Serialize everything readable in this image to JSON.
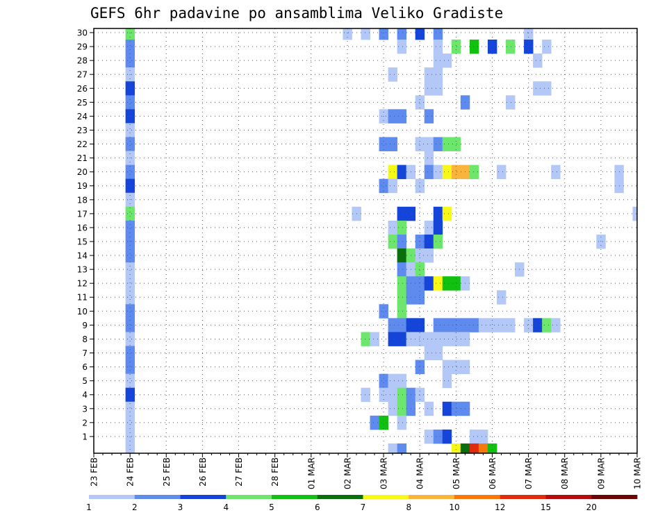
{
  "chart_data": {
    "type": "heatmap",
    "title": "GEFS 6hr padavine po ansamblima Veliko Gradiste",
    "xlabel": "",
    "ylabel": "",
    "x_ticks": [
      "23 FEB",
      "24 FEB",
      "25 FEB",
      "26 FEB",
      "27 FEB",
      "28 FEB",
      "01 MAR",
      "02 MAR",
      "03 MAR",
      "04 MAR",
      "05 MAR",
      "06 MAR",
      "07 MAR",
      "08 MAR",
      "09 MAR",
      "10 MAR"
    ],
    "y_ticks": [
      "1",
      "2",
      "3",
      "4",
      "5",
      "6",
      "7",
      "8",
      "9",
      "10",
      "11",
      "12",
      "13",
      "14",
      "15",
      "16",
      "17",
      "18",
      "19",
      "20",
      "21",
      "22",
      "23",
      "24",
      "25",
      "26",
      "27",
      "28",
      "29",
      "30"
    ],
    "ensemble_members": [
      0,
      30
    ],
    "steps_per_day": 4,
    "grid": true,
    "legend": {
      "placement": "bottom",
      "levels": [
        "1",
        "2",
        "3",
        "4",
        "5",
        "6",
        "7",
        "8",
        "10",
        "12",
        "15",
        "20"
      ],
      "colors": [
        "#b4c8f8",
        "#5f8bef",
        "#1444d8",
        "#6ee66e",
        "#11c011",
        "#0a6e0a",
        "#f8f818",
        "#f8b43c",
        "#f8780c",
        "#e02c0c",
        "#b40c0c",
        "#6e0404"
      ]
    },
    "cells": [
      [
        30,
        1,
        4
      ],
      [
        30,
        7,
        1
      ],
      [
        30,
        7.5,
        1
      ],
      [
        30,
        8,
        2
      ],
      [
        30,
        8.5,
        2
      ],
      [
        30,
        9,
        3
      ],
      [
        30,
        9.5,
        2
      ],
      [
        30,
        12,
        1
      ],
      [
        29,
        1,
        2
      ],
      [
        29,
        8.5,
        1
      ],
      [
        29,
        9.5,
        1
      ],
      [
        29,
        10,
        4
      ],
      [
        29,
        10.5,
        5
      ],
      [
        29,
        11,
        3
      ],
      [
        29,
        11.5,
        4
      ],
      [
        29,
        12,
        3
      ],
      [
        29,
        12.5,
        1
      ],
      [
        29,
        17,
        1
      ],
      [
        29,
        21,
        1
      ],
      [
        29,
        22,
        2
      ],
      [
        29,
        22.5,
        3
      ],
      [
        28,
        1,
        2
      ],
      [
        28,
        9.5,
        1
      ],
      [
        28,
        9.75,
        1
      ],
      [
        28,
        12.25,
        1
      ],
      [
        27,
        1,
        1
      ],
      [
        27,
        8.25,
        1
      ],
      [
        27,
        9.25,
        1
      ],
      [
        27,
        9.5,
        1
      ],
      [
        27,
        22.25,
        1
      ],
      [
        26,
        1,
        3
      ],
      [
        26,
        9.25,
        1
      ],
      [
        26,
        9.5,
        1
      ],
      [
        26,
        12.25,
        1
      ],
      [
        26,
        12.5,
        1
      ],
      [
        26,
        22.25,
        2
      ],
      [
        26,
        23,
        1
      ],
      [
        25,
        1,
        2
      ],
      [
        25,
        9,
        1
      ],
      [
        25,
        10.25,
        2
      ],
      [
        25,
        11.5,
        1
      ],
      [
        25,
        20.5,
        1
      ],
      [
        25,
        20.75,
        1
      ],
      [
        24,
        1,
        3
      ],
      [
        24,
        8,
        1
      ],
      [
        24,
        8.25,
        2
      ],
      [
        24,
        8.5,
        2
      ],
      [
        24,
        9.25,
        2
      ],
      [
        23,
        1,
        1
      ],
      [
        22,
        1,
        2
      ],
      [
        22,
        8,
        2
      ],
      [
        22,
        8.25,
        2
      ],
      [
        22,
        9,
        1
      ],
      [
        22,
        9.25,
        1
      ],
      [
        22,
        9.5,
        2
      ],
      [
        22,
        9.75,
        4
      ],
      [
        22,
        10,
        4
      ],
      [
        22,
        17.75,
        9
      ],
      [
        22,
        18,
        1
      ],
      [
        22,
        18.75,
        1
      ],
      [
        22,
        19,
        1
      ],
      [
        22,
        19.5,
        1
      ],
      [
        21,
        1,
        1
      ],
      [
        21,
        9.25,
        1
      ],
      [
        21,
        17.25,
        1
      ],
      [
        20,
        1,
        2
      ],
      [
        20,
        8.25,
        7
      ],
      [
        20,
        8.5,
        3
      ],
      [
        20,
        8.75,
        1
      ],
      [
        20,
        9.25,
        2
      ],
      [
        20,
        9.5,
        1
      ],
      [
        20,
        9.75,
        7
      ],
      [
        20,
        10,
        8
      ],
      [
        20,
        10.25,
        8
      ],
      [
        20,
        10.5,
        4
      ],
      [
        20,
        11.25,
        1
      ],
      [
        20,
        12.75,
        1
      ],
      [
        20,
        14.5,
        1
      ],
      [
        20,
        18,
        1
      ],
      [
        19,
        1,
        3
      ],
      [
        19,
        8,
        2
      ],
      [
        19,
        8.25,
        1
      ],
      [
        19,
        9,
        1
      ],
      [
        19,
        14.5,
        1
      ],
      [
        19,
        17,
        1
      ],
      [
        19,
        18.25,
        2
      ],
      [
        19,
        19.5,
        1
      ],
      [
        19,
        19.75,
        1
      ],
      [
        19,
        20.25,
        1
      ],
      [
        19,
        20.5,
        1
      ],
      [
        18,
        1,
        1
      ],
      [
        17,
        1,
        4
      ],
      [
        17,
        7.25,
        1
      ],
      [
        17,
        8.5,
        3
      ],
      [
        17,
        8.75,
        3
      ],
      [
        17,
        9.5,
        3
      ],
      [
        17,
        9.75,
        7
      ],
      [
        17,
        15,
        1
      ],
      [
        16,
        1,
        2
      ],
      [
        16,
        8.25,
        1
      ],
      [
        16,
        8.5,
        4
      ],
      [
        16,
        9.25,
        1
      ],
      [
        16,
        9.5,
        3
      ],
      [
        15,
        1,
        2
      ],
      [
        15,
        8.25,
        4
      ],
      [
        15,
        8.5,
        2
      ],
      [
        15,
        9,
        2
      ],
      [
        15,
        9.25,
        3
      ],
      [
        15,
        9.5,
        4
      ],
      [
        15,
        14,
        1
      ],
      [
        14,
        1,
        2
      ],
      [
        14,
        8.5,
        6
      ],
      [
        14,
        8.75,
        4
      ],
      [
        14,
        9,
        1
      ],
      [
        14,
        9.25,
        1
      ],
      [
        14,
        20,
        3
      ],
      [
        13,
        1,
        1
      ],
      [
        13,
        8.5,
        2
      ],
      [
        13,
        8.75,
        1
      ],
      [
        13,
        9,
        4
      ],
      [
        13,
        11.75,
        1
      ],
      [
        12,
        1,
        1
      ],
      [
        12,
        8.5,
        4
      ],
      [
        12,
        8.75,
        2
      ],
      [
        12,
        9,
        2
      ],
      [
        12,
        9.25,
        3
      ],
      [
        12,
        9.5,
        7
      ],
      [
        12,
        9.75,
        5
      ],
      [
        12,
        10,
        5
      ],
      [
        12,
        10.25,
        1
      ],
      [
        12,
        16,
        1
      ],
      [
        11,
        1,
        1
      ],
      [
        11,
        8.5,
        4
      ],
      [
        11,
        8.75,
        2
      ],
      [
        11,
        9,
        2
      ],
      [
        11,
        11.25,
        1
      ],
      [
        10,
        1,
        2
      ],
      [
        10,
        8,
        2
      ],
      [
        10,
        8.5,
        4
      ],
      [
        9,
        1,
        2
      ],
      [
        9,
        8.25,
        2
      ],
      [
        9,
        8.5,
        2
      ],
      [
        9,
        8.75,
        3
      ],
      [
        9,
        9,
        3
      ],
      [
        9,
        9.5,
        2
      ],
      [
        9,
        9.75,
        2
      ],
      [
        9,
        10,
        2
      ],
      [
        9,
        10.25,
        2
      ],
      [
        9,
        10.5,
        2
      ],
      [
        9,
        10.75,
        1
      ],
      [
        9,
        11,
        1
      ],
      [
        9,
        11.25,
        1
      ],
      [
        9,
        11.5,
        1
      ],
      [
        9,
        12,
        1
      ],
      [
        9,
        12.25,
        3
      ],
      [
        9,
        12.5,
        4
      ],
      [
        9,
        12.75,
        1
      ],
      [
        8,
        1,
        1
      ],
      [
        8,
        7.5,
        4
      ],
      [
        8,
        7.75,
        1
      ],
      [
        8,
        8.25,
        3
      ],
      [
        8,
        8.5,
        3
      ],
      [
        8,
        8.75,
        1
      ],
      [
        8,
        9,
        1
      ],
      [
        8,
        9.25,
        1
      ],
      [
        8,
        9.5,
        1
      ],
      [
        8,
        9.75,
        1
      ],
      [
        8,
        10,
        1
      ],
      [
        8,
        10.25,
        1
      ],
      [
        8,
        17.75,
        3
      ],
      [
        8,
        18,
        1
      ],
      [
        7,
        1,
        2
      ],
      [
        7,
        9.25,
        1
      ],
      [
        7,
        9.5,
        1
      ],
      [
        7,
        16.5,
        2
      ],
      [
        7,
        16.75,
        1
      ],
      [
        6,
        1,
        2
      ],
      [
        6,
        9,
        2
      ],
      [
        6,
        9.75,
        1
      ],
      [
        6,
        10,
        1
      ],
      [
        6,
        10.25,
        1
      ],
      [
        6,
        17,
        2
      ],
      [
        6,
        17.25,
        2
      ],
      [
        6,
        21.25,
        1
      ],
      [
        6,
        22.25,
        2
      ],
      [
        5,
        1,
        1
      ],
      [
        5,
        8,
        2
      ],
      [
        5,
        8.25,
        1
      ],
      [
        5,
        8.5,
        1
      ],
      [
        5,
        9.75,
        1
      ],
      [
        4,
        1,
        3
      ],
      [
        4,
        7.5,
        1
      ],
      [
        4,
        8,
        1
      ],
      [
        4,
        8.25,
        1
      ],
      [
        4,
        8.5,
        4
      ],
      [
        4,
        8.75,
        2
      ],
      [
        4,
        9,
        1
      ],
      [
        3,
        1,
        1
      ],
      [
        3,
        8.25,
        1
      ],
      [
        3,
        8.5,
        4
      ],
      [
        3,
        8.75,
        2
      ],
      [
        3,
        9.25,
        1
      ],
      [
        3,
        9.75,
        3
      ],
      [
        3,
        10,
        2
      ],
      [
        3,
        10.25,
        2
      ],
      [
        3,
        20.5,
        1
      ],
      [
        3,
        20.75,
        1
      ],
      [
        2,
        1,
        1
      ],
      [
        2,
        7.75,
        2
      ],
      [
        2,
        8,
        5
      ],
      [
        2,
        8.5,
        1
      ],
      [
        2,
        20.25,
        5
      ],
      [
        2,
        20.5,
        5
      ],
      [
        2,
        21.25,
        2
      ],
      [
        1,
        1,
        1
      ],
      [
        1,
        9.25,
        1
      ],
      [
        1,
        9.5,
        2
      ],
      [
        1,
        9.75,
        3
      ],
      [
        1,
        10.5,
        1
      ],
      [
        1,
        10.75,
        1
      ],
      [
        0,
        1,
        1
      ],
      [
        0,
        8.25,
        1
      ],
      [
        0,
        8.5,
        2
      ],
      [
        0,
        10,
        7
      ],
      [
        0,
        10.25,
        6
      ],
      [
        0,
        10.5,
        10
      ],
      [
        0,
        10.75,
        9
      ],
      [
        0,
        11,
        5
      ],
      [
        0,
        16.75,
        1
      ],
      [
        0,
        20.25,
        2
      ],
      [
        0,
        20.5,
        1
      ]
    ]
  }
}
